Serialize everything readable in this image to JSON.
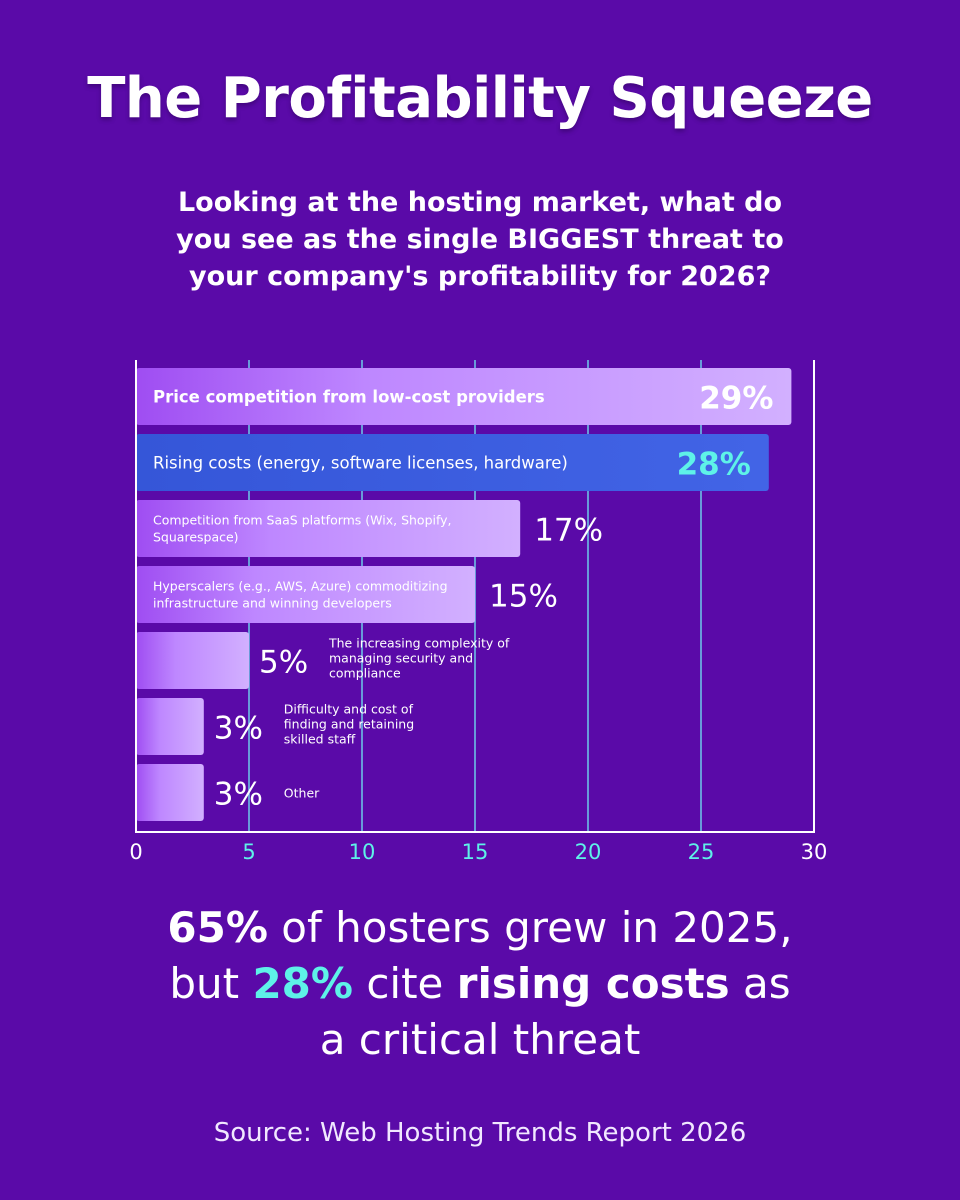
{
  "title": "The Profitability Squeeze",
  "question": {
    "line1": "Looking at the hosting market, what do",
    "line2": "you see as the single BIGGEST threat to",
    "line3": "your company's profitability for 2026?"
  },
  "chart_data": {
    "type": "bar",
    "orientation": "horizontal",
    "categories": [
      [
        "Price competition from low-cost providers"
      ],
      [
        "Rising costs (energy, software licenses, hardware)"
      ],
      [
        "Competition from SaaS platforms (Wix, Shopify,",
        "Squarespace)"
      ],
      [
        "Hyperscalers (e.g., AWS, Azure) commoditizing",
        "infrastructure and winning developers"
      ],
      [
        "The increasing complexity of",
        "managing security and",
        "compliance"
      ],
      [
        "Difficulty and cost of",
        "finding and retaining",
        "skilled staff"
      ],
      [
        "Other"
      ]
    ],
    "values": [
      29,
      28,
      17,
      15,
      5,
      3,
      3
    ],
    "value_labels": [
      "29%",
      "28%",
      "17%",
      "15%",
      "5%",
      "3%",
      "3%"
    ],
    "highlight_index": 1,
    "xlim": [
      0,
      30
    ],
    "xticks": [
      "0",
      "5",
      "10",
      "15",
      "20",
      "25",
      "30"
    ],
    "grid": true,
    "colors": {
      "bar": "#c89cff",
      "highlight_bar": "#3d5ee0",
      "highlight_value": "#5ef2e8",
      "tick_highlight": "#5ef2e8",
      "grid": "#6fd9ee",
      "axis": "#ffffff"
    }
  },
  "takeaway": {
    "p1_bold": "65%",
    "p1_text": " of hosters grew in 2025,",
    "p2_pre": "but ",
    "p2_num": "28%",
    "p2_mid": " cite ",
    "p2_bold": "rising costs",
    "p2_post": " as",
    "p3": "a critical threat"
  },
  "source": "Source: Web Hosting Trends Report 2026"
}
